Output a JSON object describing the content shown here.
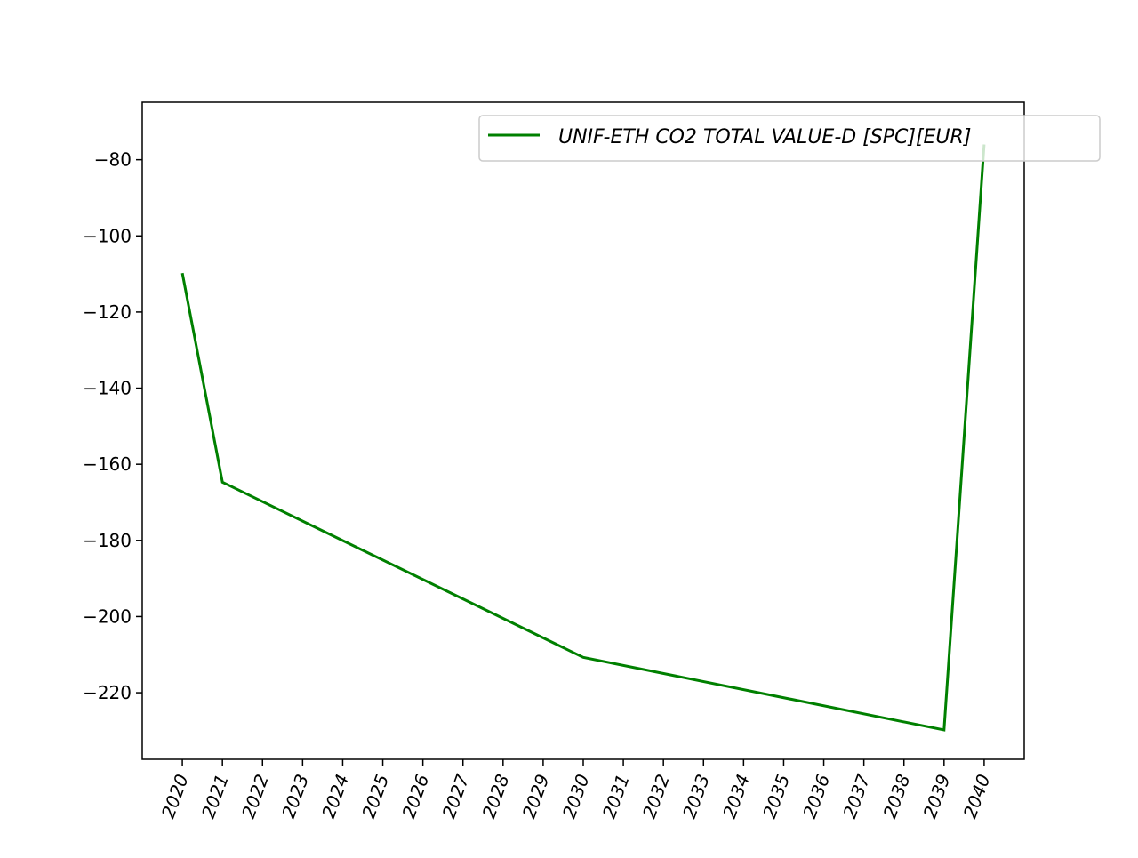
{
  "chart_data": {
    "type": "line",
    "title": "",
    "xlabel": "",
    "ylabel": "",
    "x": [
      2020,
      2021,
      2022,
      2023,
      2024,
      2025,
      2026,
      2027,
      2028,
      2029,
      2030,
      2031,
      2032,
      2033,
      2034,
      2035,
      2036,
      2037,
      2038,
      2039,
      2040
    ],
    "x_tick_labels": [
      "2020",
      "2021",
      "2022",
      "2023",
      "2024",
      "2025",
      "2026",
      "2027",
      "2028",
      "2029",
      "2030",
      "2031",
      "2032",
      "2033",
      "2034",
      "2035",
      "2036",
      "2037",
      "2038",
      "2039",
      "2040"
    ],
    "series": [
      {
        "name": "UNIF-ETH CO2 TOTAL VALUE-D [SPC][EUR]",
        "color": "#008000",
        "points": [
          [
            2020,
            -109.8
          ],
          [
            2021,
            -164.7
          ],
          [
            2030,
            -210.7
          ],
          [
            2039,
            -229.8
          ],
          [
            2040,
            -76.0
          ]
        ]
      }
    ],
    "xlim": [
      2019,
      2041
    ],
    "ylim": [
      -237.5,
      -64.9
    ],
    "y_ticks": [
      -220,
      -200,
      -180,
      -160,
      -140,
      -120,
      -100,
      -80
    ],
    "y_tick_labels": [
      "−220",
      "−200",
      "−180",
      "−160",
      "−140",
      "−120",
      "−100",
      "−80"
    ],
    "grid": false,
    "legend_position": "upper-right",
    "x_tick_rotation": "70"
  }
}
